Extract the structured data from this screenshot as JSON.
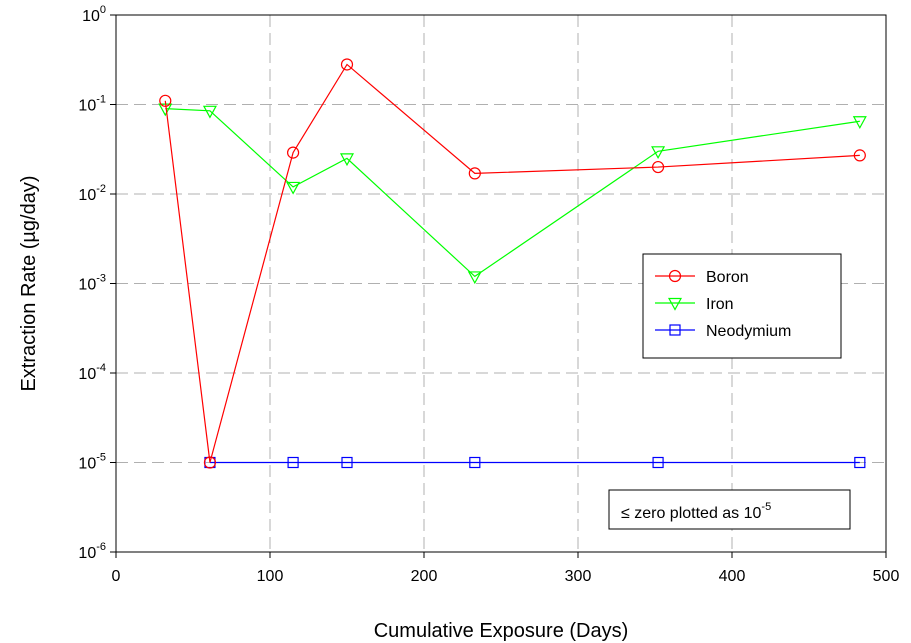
{
  "chart_data": {
    "type": "line",
    "title": "",
    "xlabel": "Cumulative Exposure (Days)",
    "ylabel": "Extraction Rate (µg/day)",
    "xlim": [
      0,
      500
    ],
    "ylim": [
      1e-06,
      1
    ],
    "yscale": "log",
    "grid": true,
    "legend_position": "right-center",
    "x_ticks": [
      0,
      100,
      200,
      300,
      400,
      500
    ],
    "x_tick_labels": [
      "0",
      "100",
      "200",
      "300",
      "400",
      "500"
    ],
    "y_ticks": [
      {
        "value": 1,
        "base": "10",
        "exp": "0"
      },
      {
        "value": 0.1,
        "base": "10",
        "exp": "-1"
      },
      {
        "value": 0.01,
        "base": "10",
        "exp": "-2"
      },
      {
        "value": 0.001,
        "base": "10",
        "exp": "-3"
      },
      {
        "value": 0.0001,
        "base": "10",
        "exp": "-4"
      },
      {
        "value": 1e-05,
        "base": "10",
        "exp": "-5"
      },
      {
        "value": 1e-06,
        "base": "10",
        "exp": "-6"
      }
    ],
    "series": [
      {
        "name": "Boron",
        "color": "#ff0000",
        "marker": "circle",
        "x": [
          32,
          61,
          115,
          150,
          233,
          352,
          483
        ],
        "y": [
          0.11,
          1e-05,
          0.029,
          0.28,
          0.017,
          0.02,
          0.027
        ]
      },
      {
        "name": "Iron",
        "color": "#00ff00",
        "marker": "triangle-down",
        "x": [
          32,
          61,
          115,
          150,
          233,
          352,
          483
        ],
        "y": [
          0.09,
          0.085,
          0.012,
          0.025,
          0.0012,
          0.03,
          0.065
        ]
      },
      {
        "name": "Neodymium",
        "color": "#0000ff",
        "marker": "square",
        "x": [
          61,
          115,
          150,
          233,
          352,
          483
        ],
        "y": [
          1e-05,
          1e-05,
          1e-05,
          1e-05,
          1e-05,
          1e-05
        ]
      }
    ],
    "annotation": {
      "prefix": "≤ zero plotted as 10",
      "sup": "-5"
    }
  }
}
